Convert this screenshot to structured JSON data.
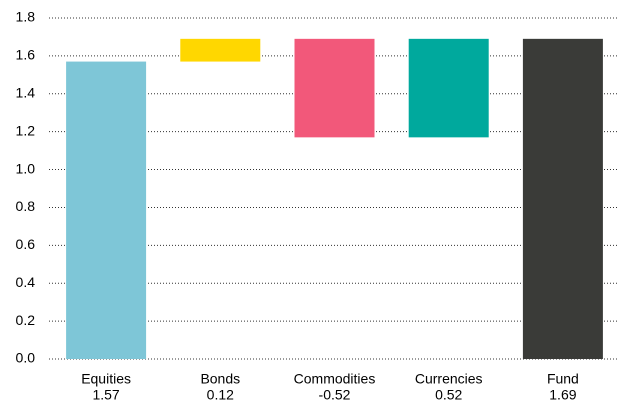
{
  "chart_data": {
    "type": "waterfall",
    "categories": [
      "Equities",
      "Bonds",
      "Commodities",
      "Currencies",
      "Fund"
    ],
    "values": [
      1.57,
      0.12,
      -0.52,
      0.52,
      1.69
    ],
    "colors": [
      "#7ec6d7",
      "#ffd700",
      "#f2587a",
      "#00a99d",
      "#3a3b38"
    ],
    "ylim": [
      0,
      1.8
    ],
    "yticks": [
      {
        "value": 0,
        "label": "0.0"
      },
      0.2,
      0.4,
      0.6,
      0.8,
      {
        "value": 1,
        "label": "1.0"
      },
      1.2,
      1.4,
      1.6,
      1.8
    ],
    "grid": true
  }
}
